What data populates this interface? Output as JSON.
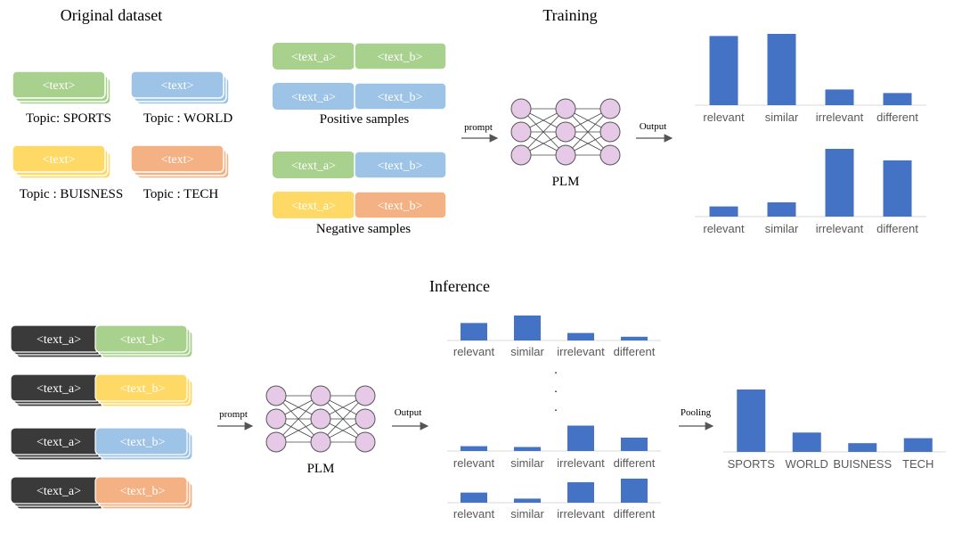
{
  "colors": {
    "green": "#A9D18E",
    "blue": "#9DC3E6",
    "yellow": "#FFD966",
    "orange": "#F4B183",
    "dark": "#3A3A3A",
    "bar": "#4472C4",
    "node_fill": "#E6C9E6",
    "node_stroke": "#555555"
  },
  "original_dataset": {
    "title": "Original dataset",
    "box_text": "<text>",
    "topics": [
      "Topic: SPORTS",
      "Topic : WORLD",
      "Topic : BUISNESS",
      "Topic : TECH"
    ]
  },
  "samples": {
    "text_a": "<text_a>",
    "text_b": "<text_b>",
    "positive_label": "Positive samples",
    "negative_label": "Negative samples"
  },
  "training": {
    "title": "Training",
    "prompt": "prompt",
    "model": "PLM",
    "output": "Output"
  },
  "inference": {
    "title": "Inference",
    "prompt": "prompt",
    "model": "PLM",
    "output": "Output",
    "pooling": "Pooling",
    "ellipsis": "."
  },
  "chart_data": [
    {
      "type": "bar",
      "categories": [
        "relevant",
        "similar",
        "irrelevant",
        "different"
      ],
      "values": [
        0.97,
        1.0,
        0.22,
        0.17
      ]
    },
    {
      "type": "bar",
      "categories": [
        "relevant",
        "similar",
        "irrelevant",
        "different"
      ],
      "values": [
        0.15,
        0.21,
        1.0,
        0.83
      ]
    },
    {
      "type": "bar",
      "categories": [
        "relevant",
        "similar",
        "irrelevant",
        "different"
      ],
      "values": [
        0.7,
        1.0,
        0.3,
        0.15
      ]
    },
    {
      "type": "bar",
      "categories": [
        "relevant",
        "similar",
        "irrelevant",
        "different"
      ],
      "values": [
        0.18,
        0.15,
        0.95,
        0.5
      ]
    },
    {
      "type": "bar",
      "categories": [
        "relevant",
        "similar",
        "irrelevant",
        "different"
      ],
      "values": [
        0.42,
        0.17,
        0.85,
        1.0
      ]
    },
    {
      "type": "bar",
      "categories": [
        "SPORTS",
        "WORLD",
        "BUISNESS",
        "TECH"
      ],
      "values": [
        1.0,
        0.31,
        0.14,
        0.22
      ]
    }
  ]
}
